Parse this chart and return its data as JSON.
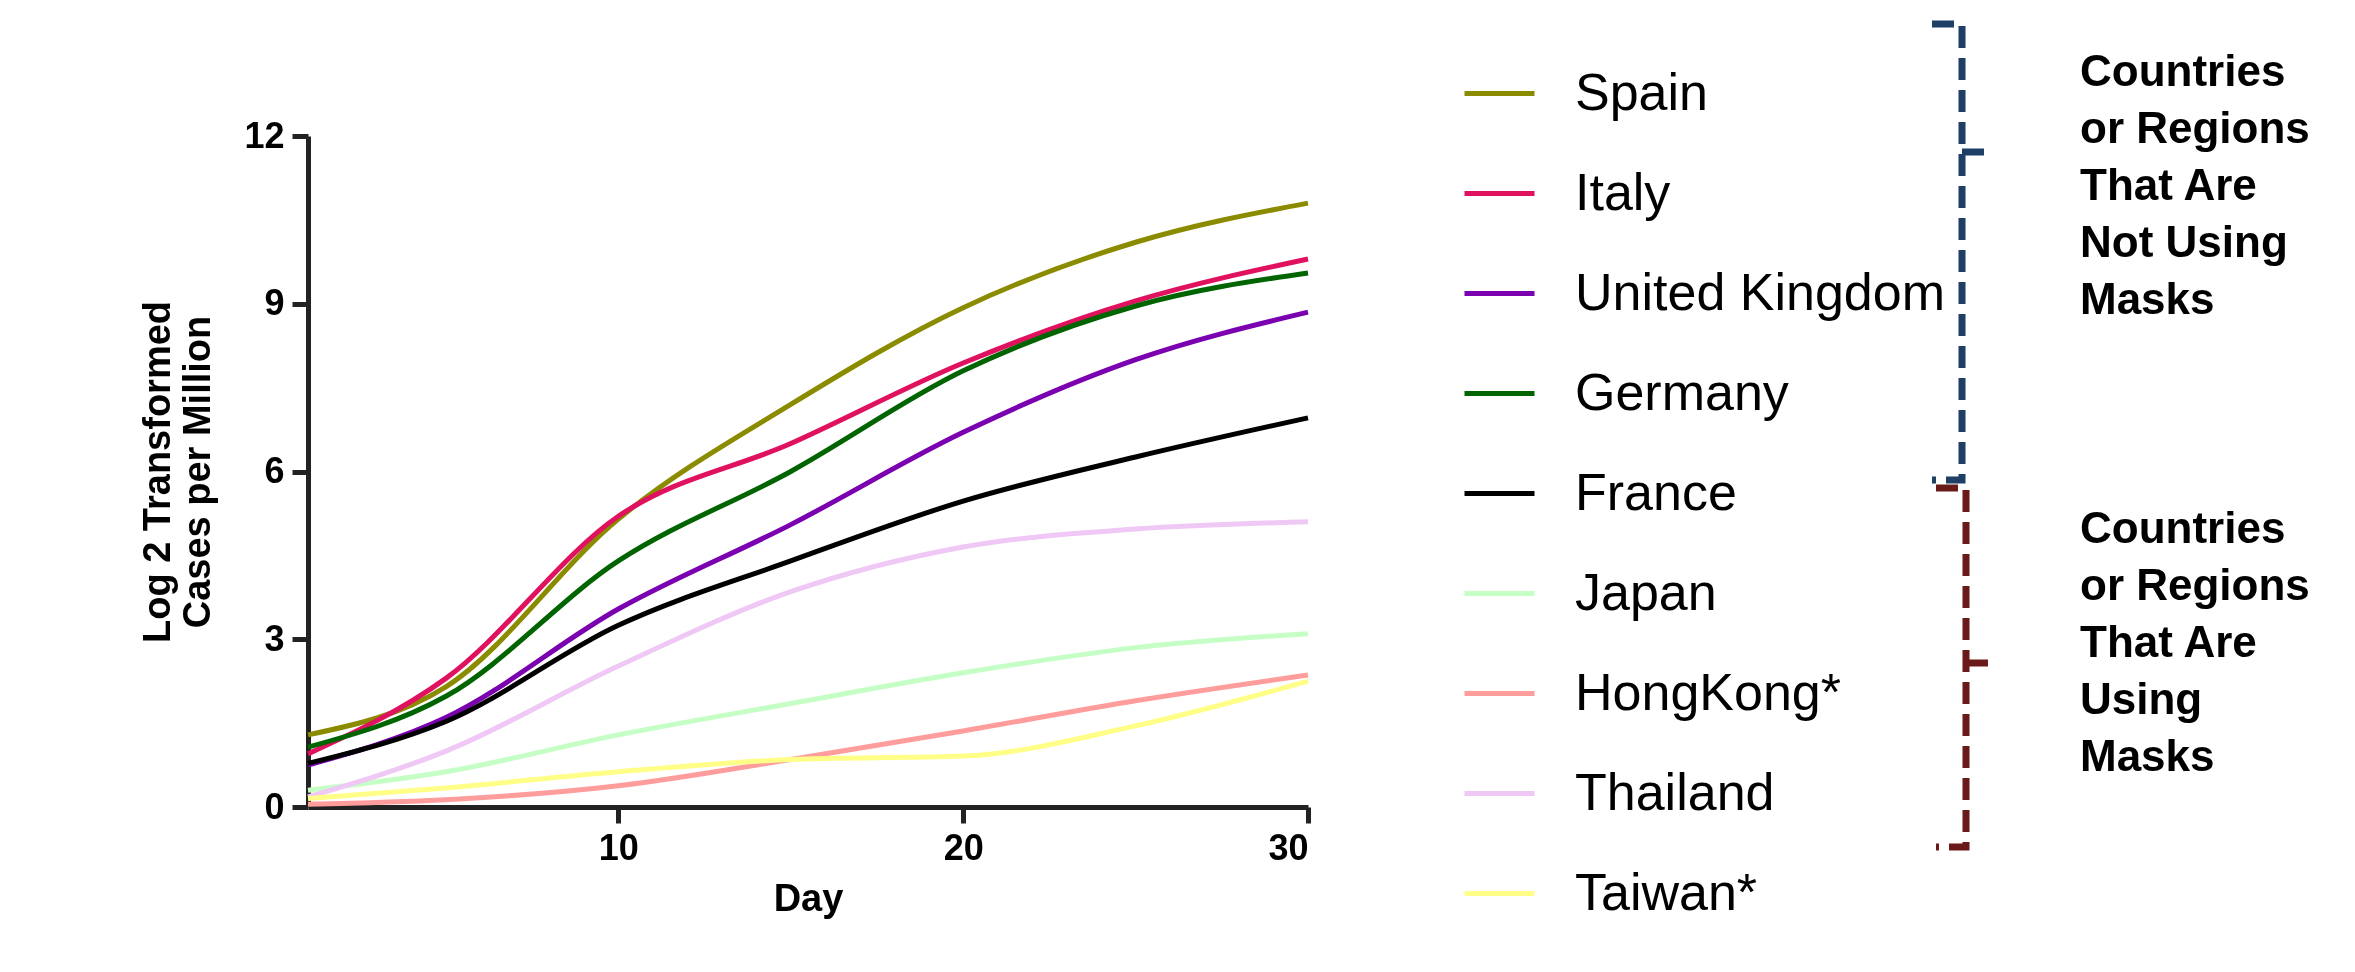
{
  "chart_data": {
    "type": "line",
    "xlabel": "Day",
    "ylabel": "Log 2 Transformed Cases per Million",
    "x": [
      1,
      5,
      10,
      15,
      20,
      25,
      30
    ],
    "xlim": [
      1,
      30
    ],
    "xticks": [
      10,
      20,
      30
    ],
    "ylim": [
      0,
      12
    ],
    "yticks": [
      0,
      3,
      6,
      9,
      12
    ],
    "grid": false,
    "legend": "right",
    "marker": "none",
    "line_style": "solid",
    "series": [
      {
        "name": "Spain",
        "color": "#8b8b00",
        "values": [
          1.29,
          2.15,
          5.15,
          7.2,
          8.93,
          10.1,
          10.8
        ]
      },
      {
        "name": "Italy",
        "color": "#e0115f",
        "values": [
          0.95,
          2.3,
          5.2,
          6.5,
          7.94,
          9.05,
          9.8
        ]
      },
      {
        "name": "United Kingdom",
        "color": "#7b00b0",
        "values": [
          0.75,
          1.6,
          3.54,
          5.05,
          6.7,
          8.0,
          8.85
        ]
      },
      {
        "name": "Germany",
        "color": "#006400",
        "values": [
          1.07,
          1.98,
          4.4,
          6.0,
          7.8,
          8.96,
          9.55
        ]
      },
      {
        "name": "France",
        "color": "#000000",
        "values": [
          0.78,
          1.53,
          3.25,
          4.4,
          5.47,
          6.26,
          6.96
        ]
      },
      {
        "name": "Japan",
        "color": "#c6ffc6",
        "values": [
          0.3,
          0.63,
          1.29,
          1.85,
          2.4,
          2.85,
          3.1
        ]
      },
      {
        "name": "HongKong*",
        "color": "#ff9c9c",
        "values": [
          0.05,
          0.13,
          0.38,
          0.85,
          1.36,
          1.9,
          2.36
        ]
      },
      {
        "name": "Thailand",
        "color": "#efc8f5",
        "values": [
          0.18,
          1.0,
          2.52,
          3.85,
          4.65,
          4.97,
          5.1
        ]
      },
      {
        "name": "Taiwan*",
        "color": "#ffff88",
        "values": [
          0.15,
          0.34,
          0.63,
          0.85,
          0.91,
          1.45,
          2.25
        ]
      }
    ],
    "annotations": [
      "Countries or Regions That Are Not Using Masks",
      "Countries or Regions That Are Using Masks"
    ]
  }
}
